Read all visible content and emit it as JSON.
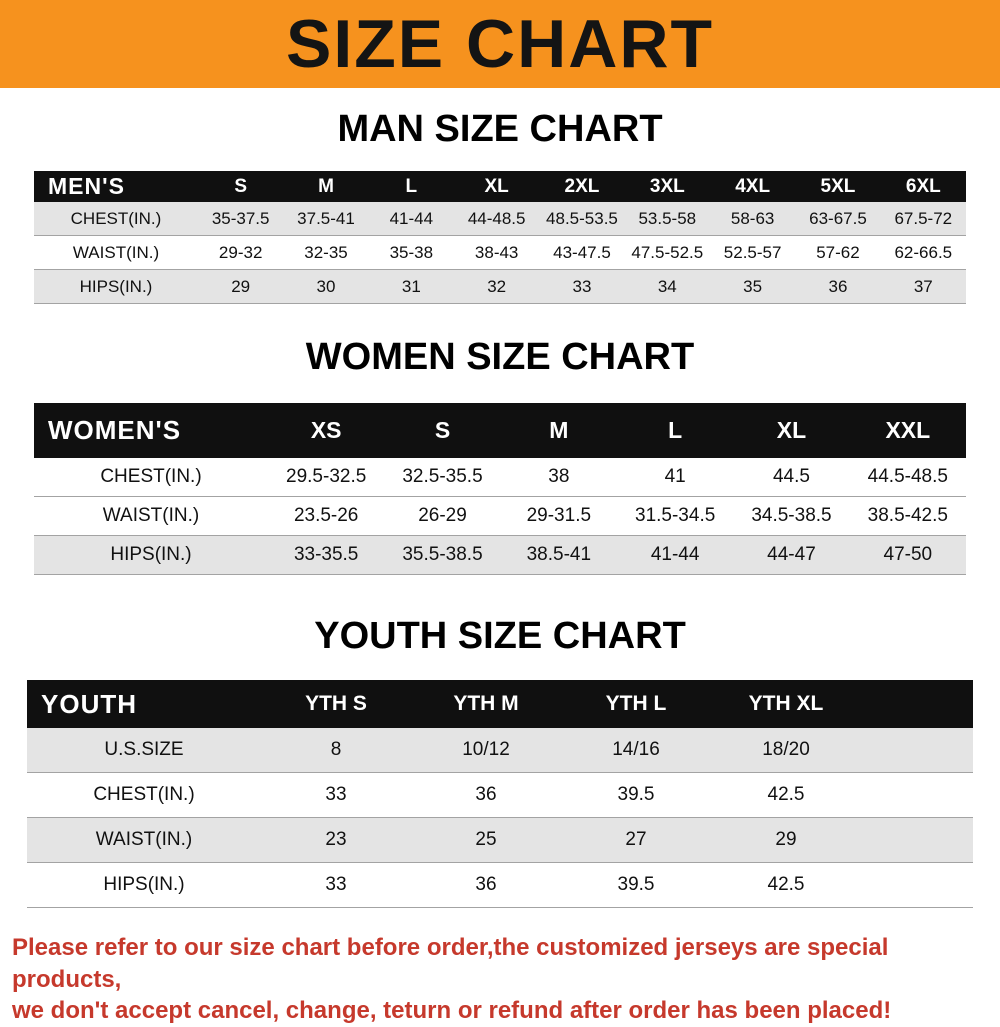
{
  "banner": {
    "title": "SIZE CHART",
    "bg_color": "#f6921e"
  },
  "table_header_bg": "#101010",
  "sections": [
    {
      "heading": "MAN SIZE CHART",
      "table": {
        "label": "MEN'S",
        "columns": [
          "S",
          "M",
          "L",
          "XL",
          "2XL",
          "3XL",
          "4XL",
          "5XL",
          "6XL"
        ],
        "rows": [
          {
            "label": "CHEST(IN.)",
            "values": [
              "35-37.5",
              "37.5-41",
              "41-44",
              "44-48.5",
              "48.5-53.5",
              "53.5-58",
              "58-63",
              "63-67.5",
              "67.5-72"
            ]
          },
          {
            "label": "WAIST(IN.)",
            "values": [
              "29-32",
              "32-35",
              "35-38",
              "38-43",
              "43-47.5",
              "47.5-52.5",
              "52.5-57",
              "57-62",
              "62-66.5"
            ]
          },
          {
            "label": "HIPS(IN.)",
            "values": [
              "29",
              "30",
              "31",
              "32",
              "33",
              "34",
              "35",
              "36",
              "37"
            ]
          }
        ]
      }
    },
    {
      "heading": "WOMEN SIZE CHART",
      "table": {
        "label": "WOMEN'S",
        "columns": [
          "XS",
          "S",
          "M",
          "L",
          "XL",
          "XXL"
        ],
        "rows": [
          {
            "label": "CHEST(IN.)",
            "values": [
              "29.5-32.5",
              "32.5-35.5",
              "38",
              "41",
              "44.5",
              "44.5-48.5"
            ]
          },
          {
            "label": "WAIST(IN.)",
            "values": [
              "23.5-26",
              "26-29",
              "29-31.5",
              "31.5-34.5",
              "34.5-38.5",
              "38.5-42.5"
            ]
          },
          {
            "label": "HIPS(IN.)",
            "values": [
              "33-35.5",
              "35.5-38.5",
              "38.5-41",
              "41-44",
              "44-47",
              "47-50"
            ]
          }
        ]
      }
    },
    {
      "heading": "YOUTH SIZE CHART",
      "table": {
        "label": "YOUTH",
        "columns": [
          "YTH S",
          "YTH M",
          "YTH L",
          "YTH XL"
        ],
        "rows": [
          {
            "label": "U.S.SIZE",
            "values": [
              "8",
              "10/12",
              "14/16",
              "18/20"
            ]
          },
          {
            "label": "CHEST(IN.)",
            "values": [
              "33",
              "36",
              "39.5",
              "42.5"
            ]
          },
          {
            "label": "WAIST(IN.)",
            "values": [
              "23",
              "25",
              "27",
              "29"
            ]
          },
          {
            "label": "HIPS(IN.)",
            "values": [
              "33",
              "36",
              "39.5",
              "42.5"
            ]
          }
        ]
      }
    }
  ],
  "footer": {
    "text_color": "#c6392c",
    "lines": [
      "Please refer to our size chart before order,the customized jerseys are special products,",
      "we don't accept cancel, change, teturn or refund after order has been placed!"
    ]
  }
}
